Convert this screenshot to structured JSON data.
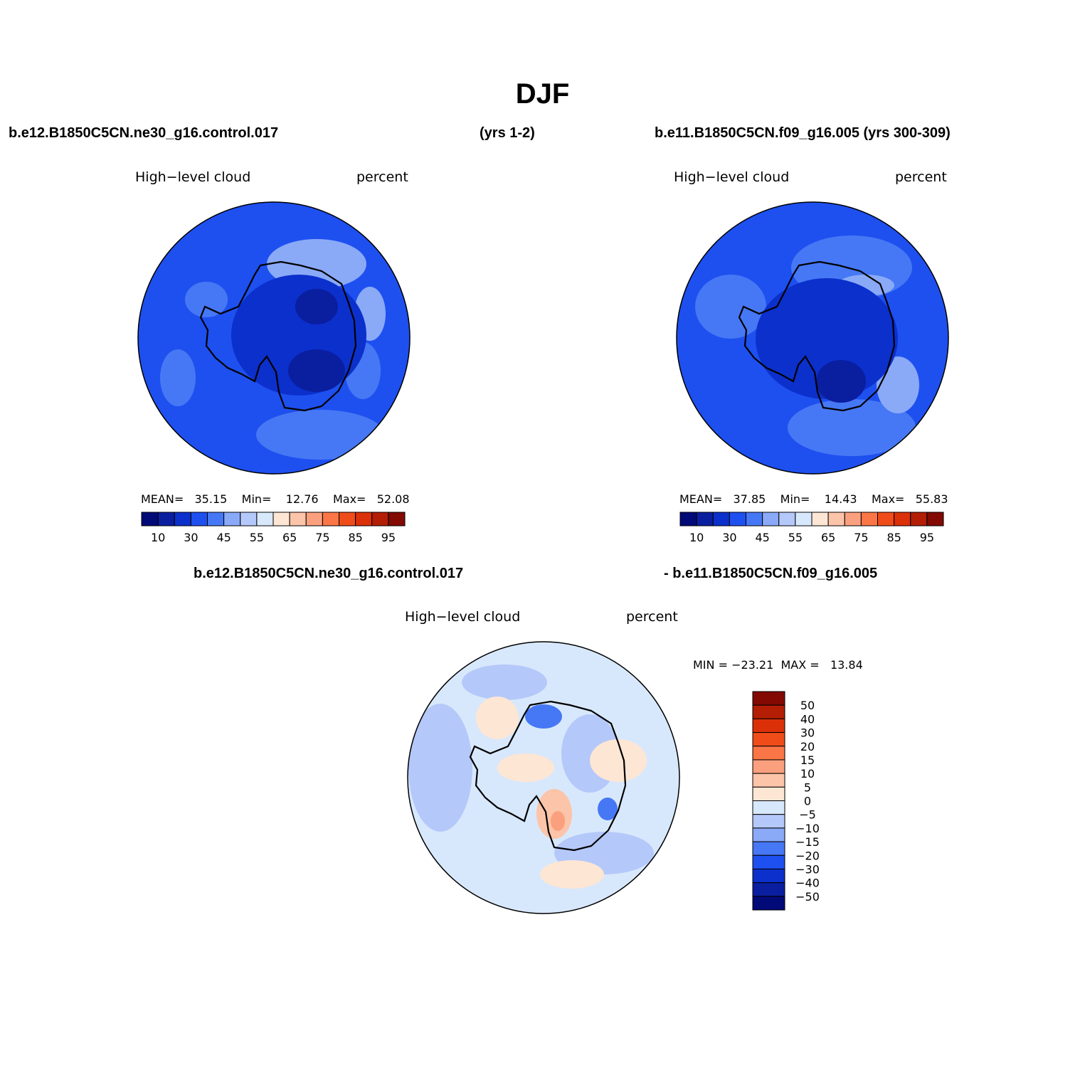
{
  "title": "DJF",
  "case1": {
    "name": "b.e12.B1850C5CN.ne30_g16.control.017",
    "years": "(yrs 1-2)"
  },
  "case2": {
    "header": "b.e11.B1850C5CN.f09_g16.005 (yrs 300-309)"
  },
  "diff": {
    "case1": "b.e12.B1850C5CN.ne30_g16.control.017",
    "case2": "- b.e11.B1850C5CN.f09_g16.005"
  },
  "panels": [
    {
      "variable": "High−level cloud",
      "units": "percent",
      "stats": {
        "mean_label": "MEAN=",
        "mean": "35.15",
        "min_label": "Min=",
        "min": "12.76",
        "max_label": "Max=",
        "max": "52.08"
      }
    },
    {
      "variable": "High−level cloud",
      "units": "percent",
      "stats": {
        "mean_label": "MEAN=",
        "mean": "37.85",
        "min_label": "Min=",
        "min": "14.43",
        "max_label": "Max=",
        "max": "55.83"
      }
    },
    {
      "variable": "High−level cloud",
      "units": "percent",
      "stats": {
        "min_label": "MIN =",
        "min": "−23.21",
        "max_label": "MAX =",
        "max": "13.84"
      }
    }
  ],
  "colorbar_main": {
    "colors": [
      "#020a78",
      "#0a1ea0",
      "#0c30cc",
      "#1e50f0",
      "#4678f5",
      "#8aaaf8",
      "#b4c8fa",
      "#d8e8fc",
      "#fde6d4",
      "#fcc4a8",
      "#fba07e",
      "#fa7646",
      "#f04c1a",
      "#dc3008",
      "#b41e04",
      "#820a02"
    ],
    "labels": [
      "10",
      "30",
      "45",
      "55",
      "65",
      "75",
      "85",
      "95"
    ]
  },
  "colorbar_diff": {
    "colors": [
      "#820a02",
      "#b41e04",
      "#dc3008",
      "#f04c1a",
      "#fa7646",
      "#fba07e",
      "#fcc4a8",
      "#fde6d4",
      "#d8e8fc",
      "#b4c8fa",
      "#8aaaf8",
      "#4678f5",
      "#1e50f0",
      "#0c30cc",
      "#0a1ea0",
      "#020a78"
    ],
    "labels": [
      "50",
      "40",
      "30",
      "20",
      "15",
      "10",
      "5",
      "0",
      "−5",
      "−10",
      "−15",
      "−20",
      "−30",
      "−40",
      "−50"
    ]
  },
  "map_colors": {
    "ocean_1": "#1e50f0",
    "ocean_2": "#1e50f0",
    "ocean_diff": "#d8e8fc",
    "light_blue": "#4678f5",
    "mid_blue": "#0c30cc",
    "dark_blue": "#0a1ea0",
    "pale_blue": "#8aaaf8",
    "diff_blue": "#b4c8fa",
    "diff_peach": "#fde6d4",
    "diff_orange": "#fcc4a8",
    "diff_red": "#fba07e",
    "diff_darkblue": "#4678f5"
  }
}
